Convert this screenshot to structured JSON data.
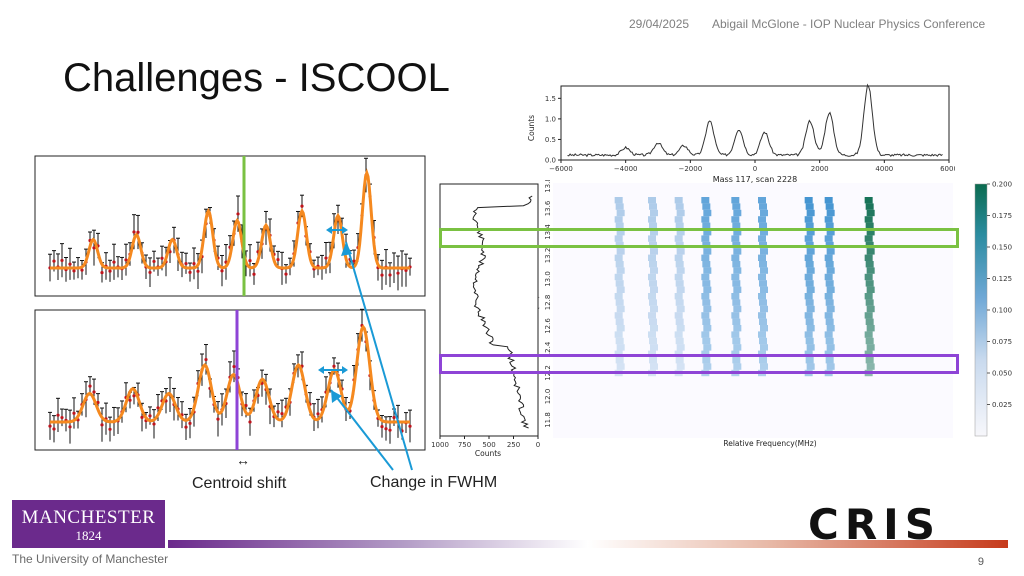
{
  "header": {
    "date": "29/04/2025",
    "event": "Abigail McGlone - IOP Nuclear Physics Conference"
  },
  "title": "Challenges - ISCOOL",
  "annotations": {
    "centroid_arrow": "↔",
    "centroid_shift": "Centroid shift",
    "change_fwhm": "Change in FWHM"
  },
  "footer": {
    "university_logo_text": "MANCHESTER",
    "university_year": "1824",
    "university_name": "The University of Manchester",
    "cris_logo_text": "CRIS",
    "page_number": "9"
  },
  "colors": {
    "green_marker": "#7ac142",
    "purple_marker": "#8e44d6",
    "arrow_blue": "#1a9ad6",
    "fit_orange": "#f5891f",
    "data_red": "#c0141c",
    "manchester_purple": "#6b2a8c"
  },
  "chart_data": [
    {
      "type": "line",
      "title": "Mass 117, scan 2228",
      "ylabel": "Counts",
      "xlabel": "",
      "xlim": [
        -6000,
        6000
      ],
      "ylim": [
        0,
        1.8
      ],
      "x_ticks": [
        "−6000",
        "−4000",
        "−2000",
        "0",
        "2000",
        "4000",
        "6000"
      ],
      "y_ticks": [
        "0.0",
        "0.5",
        "1.0",
        "1.5"
      ],
      "baseline": 0.12,
      "peaks": [
        {
          "x": -4000,
          "y": 0.3
        },
        {
          "x": -3000,
          "y": 0.42
        },
        {
          "x": -2200,
          "y": 0.35
        },
        {
          "x": -1400,
          "y": 0.95
        },
        {
          "x": -500,
          "y": 0.75
        },
        {
          "x": 300,
          "y": 0.68
        },
        {
          "x": 1700,
          "y": 0.95
        },
        {
          "x": 2300,
          "y": 1.15
        },
        {
          "x": 3500,
          "y": 1.82
        }
      ],
      "grid": false
    },
    {
      "type": "heatmap",
      "xlabel": "Relative Frequency(MHz)",
      "ylabel": "ToF (us)",
      "ylim": [
        11.6,
        13.8
      ],
      "y_ticks": [
        "13.8",
        "13.6",
        "13.4",
        "13.2",
        "13.0",
        "12.8",
        "12.6",
        "12.4",
        "12.2",
        "12.0",
        "11.8"
      ],
      "colorbar_ticks": [
        "0.200",
        "0.175",
        "0.150",
        "0.125",
        "0.100",
        "0.075",
        "0.050",
        "0.025"
      ],
      "colorbar_range": [
        0,
        0.2
      ],
      "stripes_x": [
        -4000,
        -3000,
        -2200,
        -1400,
        -500,
        300,
        1700,
        2300,
        3500
      ],
      "stripes_intensity": [
        0.05,
        0.06,
        0.05,
        0.11,
        0.1,
        0.09,
        0.12,
        0.13,
        0.2
      ]
    },
    {
      "type": "line",
      "xlabel": "Counts",
      "ylabel": "",
      "xlim": [
        1000,
        0
      ],
      "x_ticks": [
        "1000",
        "750",
        "500",
        "250",
        "0"
      ]
    },
    {
      "type": "line",
      "xlabel": "",
      "ylabel": "",
      "series": [
        {
          "name": "",
          "values": []
        }
      ]
    }
  ]
}
